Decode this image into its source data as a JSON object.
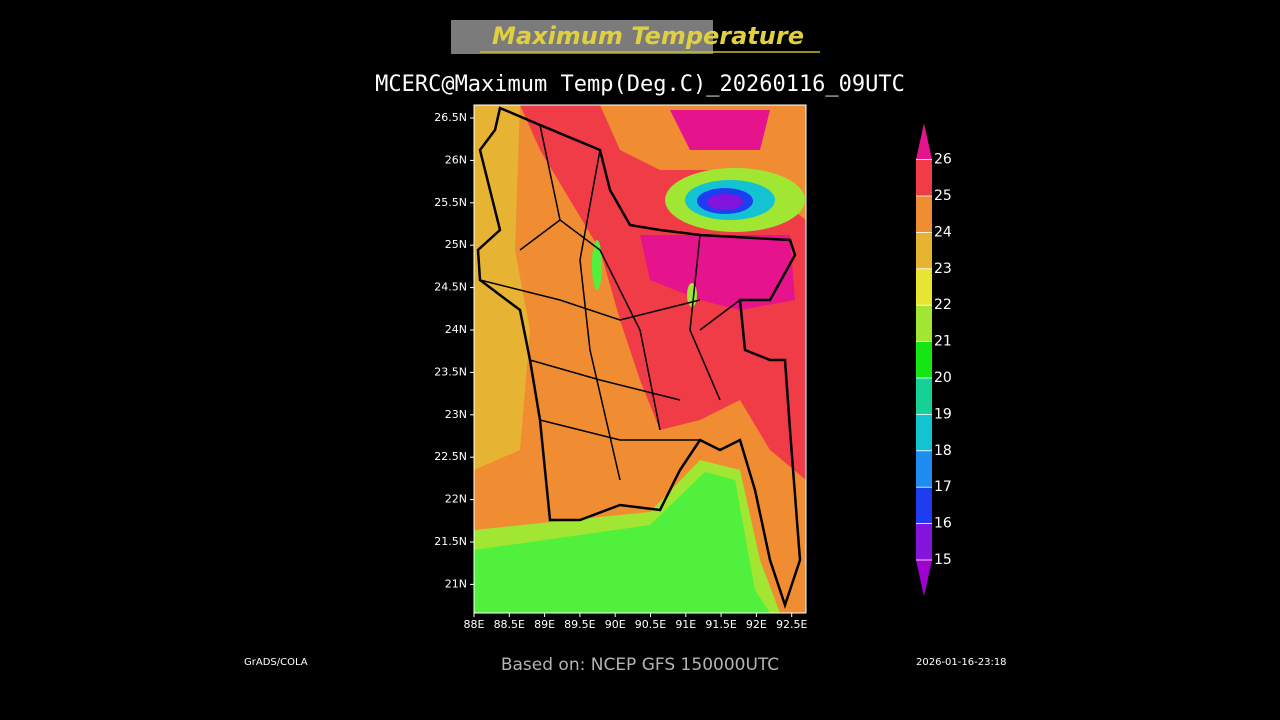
{
  "header": {
    "title": "Maximum Temperature",
    "subtitle": "MCERC@Maximum Temp(Deg.C)_20260116_09UTC"
  },
  "map": {
    "lat_labels": [
      "26.5N",
      "26N",
      "25.5N",
      "25N",
      "24.5N",
      "24N",
      "23.5N",
      "23N",
      "22.5N",
      "22N",
      "21.5N",
      "21N"
    ],
    "lon_labels": [
      "88E",
      "88.5E",
      "89E",
      "89.5E",
      "90E",
      "90.5E",
      "91E",
      "91.5E",
      "92E",
      "92.5E"
    ]
  },
  "colorbar": {
    "levels": [
      15,
      16,
      17,
      18,
      19,
      20,
      21,
      22,
      23,
      24,
      25,
      26
    ],
    "colors": [
      "#a000d2",
      "#8214dc",
      "#1e3cf0",
      "#1e8cf0",
      "#14c3d2",
      "#14d296",
      "#14e614",
      "#a0e632",
      "#e6e632",
      "#e6b432",
      "#f08c32",
      "#f03c46",
      "#e6148c"
    ]
  },
  "footer": {
    "left": "GrADS/COLA",
    "center": "Based on: NCEP GFS 150000UTC",
    "right": "2026-01-16-23:18"
  }
}
